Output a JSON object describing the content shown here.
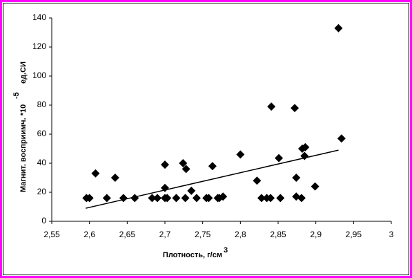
{
  "chart_data": {
    "type": "scatter",
    "x_label": "Плотность, г/см",
    "x_label_sup": "3",
    "y_label": "Магнит. восприимч. *10",
    "y_label_sup": "-5",
    "y_label_suffix": "ед.СИ",
    "x": [
      2.596,
      2.6,
      2.608,
      2.623,
      2.634,
      2.645,
      2.66,
      2.683,
      2.69,
      2.7,
      2.7,
      2.7,
      2.703,
      2.715,
      2.724,
      2.728,
      2.727,
      2.735,
      2.742,
      2.755,
      2.758,
      2.763,
      2.77,
      2.772,
      2.777,
      2.8,
      2.822,
      2.828,
      2.835,
      2.84,
      2.841,
      2.851,
      2.853,
      2.872,
      2.874,
      2.874,
      2.881,
      2.882,
      2.886,
      2.885,
      2.899,
      2.93,
      2.934
    ],
    "series": [
      {
        "color": "#000000",
        "values": [
          16,
          16,
          33,
          16,
          30,
          16,
          16,
          16,
          16,
          39,
          23,
          16,
          16,
          16,
          40,
          36,
          16,
          21,
          16,
          16,
          16,
          38,
          16,
          16,
          17,
          46,
          28,
          16,
          16,
          16,
          79,
          43.5,
          16,
          78,
          30,
          17,
          16,
          50,
          51,
          45,
          24,
          133,
          57
        ]
      }
    ],
    "trendline": {
      "x": [
        2.595,
        2.93
      ],
      "y": [
        9,
        49
      ]
    },
    "xlim": [
      2.55,
      3
    ],
    "xticks": [
      {
        "value": 2.55,
        "label": "2,55"
      },
      {
        "value": 2.6,
        "label": "2,6"
      },
      {
        "value": 2.65,
        "label": "2,65"
      },
      {
        "value": 2.7,
        "label": "2,7"
      },
      {
        "value": 2.75,
        "label": "2,75"
      },
      {
        "value": 2.8,
        "label": "2,8"
      },
      {
        "value": 2.85,
        "label": "2,85"
      },
      {
        "value": 2.9,
        "label": "2,9"
      },
      {
        "value": 2.95,
        "label": "2,95"
      },
      3
    ],
    "ylim": [
      0,
      140
    ],
    "yticks": [
      0,
      20,
      40,
      60,
      80,
      100,
      120,
      140
    ],
    "grid": false
  }
}
